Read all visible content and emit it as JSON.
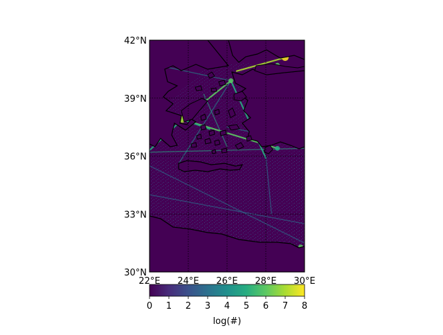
{
  "chart_data": {
    "type": "heatmap",
    "title": "",
    "lon_range": [
      22,
      30
    ],
    "lat_range": [
      30,
      42
    ],
    "lon_ticks": [
      22,
      24,
      26,
      28,
      30
    ],
    "lat_ticks": [
      30,
      33,
      36,
      39,
      42
    ],
    "lon_tick_labels": [
      "22°E",
      "24°E",
      "26°E",
      "28°E",
      "30°E"
    ],
    "lat_tick_labels": [
      "30°N",
      "33°N",
      "36°N",
      "39°N",
      "42°N"
    ],
    "grid": true,
    "grid_style": "dotted",
    "colormap": "viridis",
    "colorbar": {
      "range": [
        0,
        8
      ],
      "ticks": [
        0,
        1,
        2,
        3,
        4,
        5,
        6,
        7,
        8
      ],
      "tick_labels": [
        "0",
        "1",
        "2",
        "3",
        "4",
        "5",
        "6",
        "7",
        "8"
      ],
      "label": "log(#)",
      "orientation": "horizontal",
      "colors": [
        "#440154",
        "#472c7a",
        "#3b518b",
        "#2c718e",
        "#21908d",
        "#27ad81",
        "#5cc863",
        "#aadc32",
        "#fde725"
      ]
    },
    "background_value": 0,
    "background_color": "#440154",
    "coastline_color": "#000000",
    "shipping_routes": [
      {
        "from": [
          23.7,
          37.9
        ],
        "to": [
          26.2,
          39.9
        ],
        "level": 5.5
      },
      {
        "from": [
          23.7,
          37.9
        ],
        "to": [
          28.6,
          36.4
        ],
        "level": 5.5
      },
      {
        "from": [
          23.7,
          37.9
        ],
        "to": [
          25.1,
          37.4
        ],
        "level": 5
      },
      {
        "from": [
          22.0,
          36.3
        ],
        "to": [
          23.7,
          37.9
        ],
        "level": 5
      },
      {
        "from": [
          22.0,
          36.2
        ],
        "to": [
          30.0,
          36.4
        ],
        "level": 4.5
      },
      {
        "from": [
          26.2,
          39.9
        ],
        "to": [
          28.0,
          35.9
        ],
        "level": 5
      },
      {
        "from": [
          24.8,
          39.2
        ],
        "to": [
          26.0,
          36.5
        ],
        "level": 4.5
      },
      {
        "from": [
          26.5,
          40.4
        ],
        "to": [
          29.0,
          41.1
        ],
        "level": 6.5
      },
      {
        "from": [
          22.9,
          40.6
        ],
        "to": [
          26.2,
          39.9
        ],
        "level": 4
      },
      {
        "from": [
          22.0,
          35.5
        ],
        "to": [
          30.0,
          31.5
        ],
        "level": 3
      },
      {
        "from": [
          22.0,
          34.0
        ],
        "to": [
          30.0,
          32.5
        ],
        "level": 3
      },
      {
        "from": [
          23.5,
          35.6
        ],
        "to": [
          26.2,
          39.9
        ],
        "level": 3.5
      },
      {
        "from": [
          28.0,
          36.0
        ],
        "to": [
          28.3,
          33.0
        ],
        "level": 3
      },
      {
        "from": [
          26.0,
          37.5
        ],
        "to": [
          29.5,
          36.8
        ],
        "level": 3.5
      }
    ],
    "hotspots": [
      {
        "lon": 23.7,
        "lat": 37.9,
        "level": 7
      },
      {
        "lon": 29.0,
        "lat": 41.1,
        "level": 8
      },
      {
        "lon": 28.6,
        "lat": 40.7,
        "level": 6
      },
      {
        "lon": 26.2,
        "lat": 39.9,
        "level": 6
      },
      {
        "lon": 29.8,
        "lat": 31.3,
        "level": 6
      },
      {
        "lon": 28.6,
        "lat": 36.4,
        "level": 5
      }
    ]
  }
}
